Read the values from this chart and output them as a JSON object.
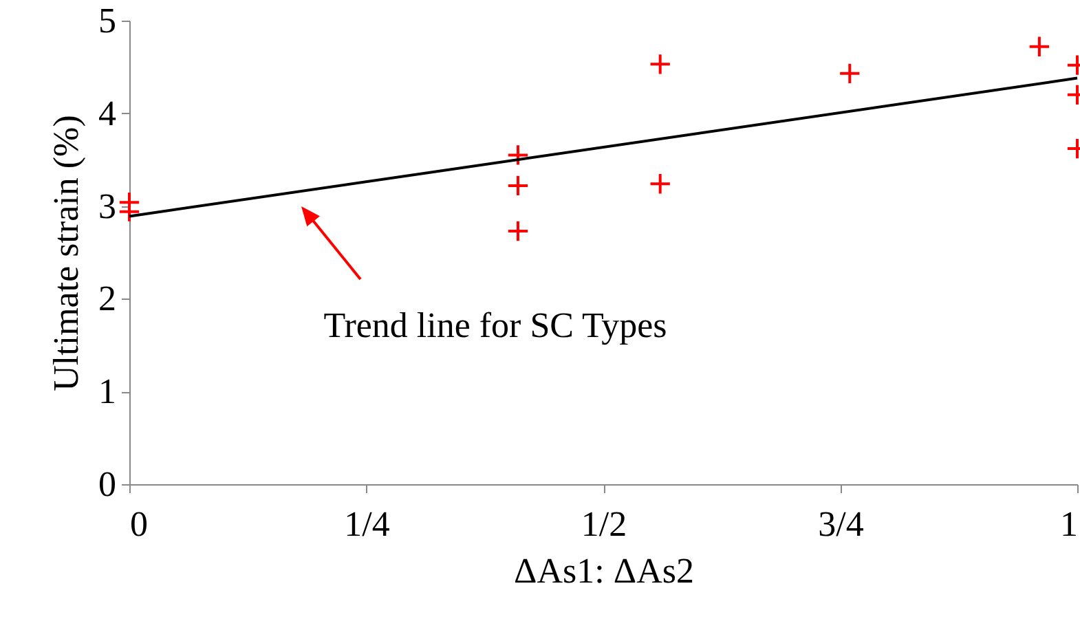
{
  "chart_data": {
    "type": "scatter",
    "xlabel": "ΔAs1: ΔAs2",
    "ylabel": "Ultimate strain (%)",
    "xlim": [
      0,
      1
    ],
    "xticks": [
      0,
      {
        "value": 0.25,
        "label": "1/4"
      },
      {
        "value": 0.5,
        "label": "1/2"
      },
      {
        "value": 0.75,
        "label": "3/4"
      },
      1
    ],
    "ylim": [
      0,
      5
    ],
    "yticks": [
      0,
      1,
      2,
      3,
      4,
      5
    ],
    "grid": false,
    "series": [
      {
        "marker": "cross",
        "color": "#ff0000",
        "x": [
          0.0,
          0.0,
          0.41,
          0.41,
          0.41,
          0.56,
          0.56,
          0.76,
          0.96,
          1.0,
          1.0,
          1.0
        ],
        "values": [
          3.04,
          2.94,
          3.55,
          3.22,
          2.73,
          4.53,
          3.24,
          4.43,
          4.72,
          4.52,
          4.2,
          3.62
        ]
      },
      {
        "type": "line",
        "color": "#000000",
        "x": [
          0,
          1
        ],
        "values": [
          2.89,
          4.38
        ]
      }
    ],
    "annotations": [
      "Trend line for SC Types"
    ]
  }
}
